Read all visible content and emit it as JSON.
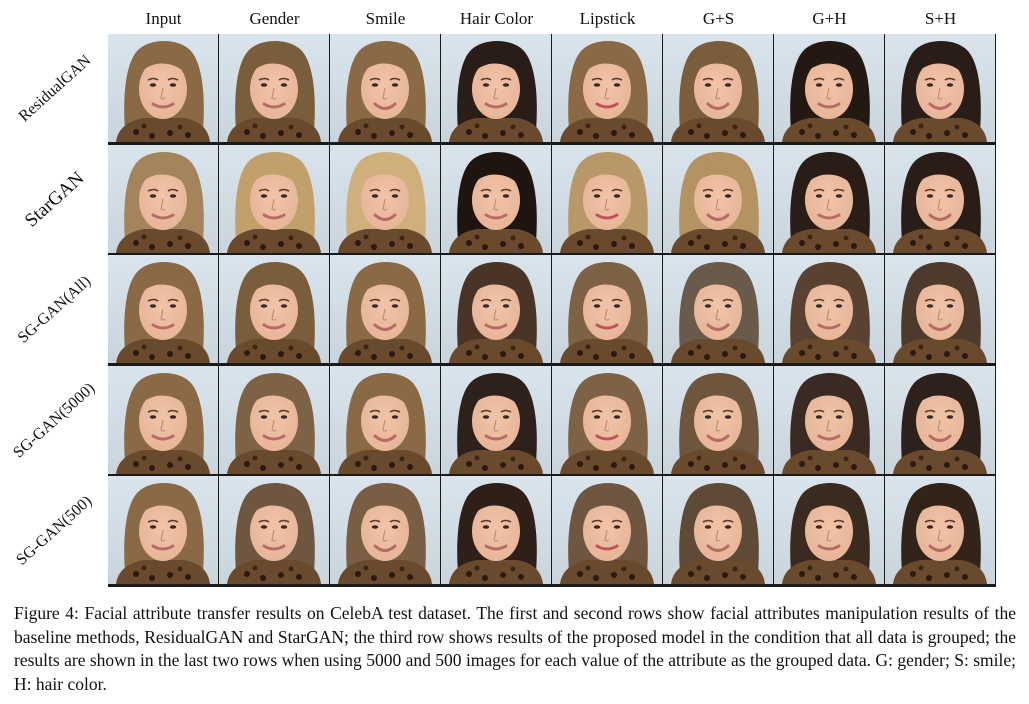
{
  "columns": [
    "Input",
    "Gender",
    "Smile",
    "Hair Color",
    "Lipstick",
    "G+S",
    "G+H",
    "S+H"
  ],
  "rows": [
    "ResidualGAN",
    "StarGAN",
    "SG-GAN(All)",
    "SG-GAN(5000)",
    "SG-GAN(500)"
  ],
  "cell_hair_colors": [
    [
      "#8a6a45",
      "#7a5e3c",
      "#8a6a45",
      "#2a1c16",
      "#8a6a45",
      "#7a5e3c",
      "#241813",
      "#2a1c16"
    ],
    [
      "#a4845a",
      "#c2a06c",
      "#cfb07c",
      "#1e1410",
      "#b89868",
      "#b49262",
      "#2a1c16",
      "#2a1c16"
    ],
    [
      "#8a6a45",
      "#7a5e3c",
      "#8a6a45",
      "#4a3428",
      "#7e6246",
      "#6a5a4c",
      "#5a4232",
      "#4e3a2c"
    ],
    [
      "#8a6a45",
      "#7e6246",
      "#8a6a45",
      "#2e201a",
      "#7e6246",
      "#6e563e",
      "#3a2a22",
      "#2e201a"
    ],
    [
      "#8a6a45",
      "#6e5640",
      "#7a5e44",
      "#2e2018",
      "#6e5640",
      "#5e4a36",
      "#3a2a20",
      "#332419"
    ]
  ],
  "caption": "Figure 4: Facial attribute transfer results on CelebA test dataset. The first and second rows show facial attributes manipulation results of the baseline methods, ResidualGAN and StarGAN; the third row shows results of the proposed model in the condition that all data is grouped; the results are shown in the last two rows when using 5000 and 500 images for each value of the attribute as the grouped data. G: gender; S: smile; H: hair color.",
  "colors": {
    "background_sky": "#d9e4ec",
    "skin": "#e7b497",
    "scarf": "#6a4a2c"
  }
}
